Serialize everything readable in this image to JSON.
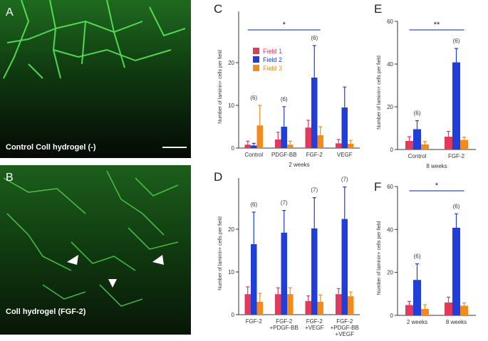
{
  "images": [
    {
      "label": "A",
      "caption": "Control Coll hydrogel (-)"
    },
    {
      "label": "B",
      "caption": "Coll hydrogel (FGF-2)"
    }
  ],
  "chart_data": [
    {
      "type": "bar",
      "label": "C",
      "ylabel": "Number of laminin+ cells per field",
      "xlabel": "2 weeks",
      "categories": [
        [
          "Control"
        ],
        [
          "PDGF-BB"
        ],
        [
          "FGF-2"
        ],
        [
          "VEGF"
        ]
      ],
      "series": [
        {
          "name": "Field 1",
          "color": "#e03a5c",
          "values": [
            0.8,
            2.0,
            4.8,
            1.1
          ],
          "errors": [
            0.8,
            1.7,
            1.7,
            0.9
          ]
        },
        {
          "name": "Field 2",
          "color": "#1f3fd8",
          "values": [
            0.6,
            5.0,
            16.5,
            9.5
          ],
          "errors": [
            0.5,
            4.7,
            7.5,
            4.8
          ]
        },
        {
          "name": "Field 3",
          "color": "#f28a1e",
          "values": [
            5.3,
            0.8,
            3.0,
            1.0
          ],
          "errors": [
            4.7,
            0.8,
            2.0,
            0.8
          ]
        }
      ],
      "annotations": [
        "(6)",
        "(6)",
        "(6)",
        null
      ],
      "significance": "*",
      "ylim": [
        0,
        32
      ],
      "yticks": [
        0,
        10,
        20
      ],
      "legend": true
    },
    {
      "type": "bar",
      "label": "D",
      "ylabel": "Number of laminin+ cells per field",
      "categories": [
        [
          "FGF-2"
        ],
        [
          "FGF-2",
          "+PDGF-BB"
        ],
        [
          "FGF-2",
          "+VEGF"
        ],
        [
          "FGF-2",
          "+PDGF-BB",
          "+VEGF"
        ]
      ],
      "series": [
        {
          "color": "#e03a5c",
          "values": [
            4.8,
            4.8,
            3.2,
            4.8
          ],
          "errors": [
            1.7,
            1.5,
            1.2,
            1.3
          ]
        },
        {
          "color": "#1f3fd8",
          "values": [
            16.5,
            19.2,
            20.2,
            22.4
          ],
          "errors": [
            7.5,
            5.2,
            7.2,
            7.5
          ]
        },
        {
          "color": "#f28a1e",
          "values": [
            3.0,
            4.8,
            3.0,
            4.3
          ],
          "errors": [
            2.0,
            1.5,
            1.6,
            1.0
          ]
        }
      ],
      "annotations": [
        "(6)",
        "(7)",
        "(7)",
        "(7)"
      ],
      "ylim": [
        0,
        32
      ],
      "yticks": [
        0,
        10,
        20
      ],
      "legend": false
    },
    {
      "type": "bar",
      "label": "E",
      "ylabel": "Number of laminin+ cells per field",
      "xlabel": "8 weeks",
      "categories": [
        [
          "Control"
        ],
        [
          "FGF-2"
        ]
      ],
      "series": [
        {
          "color": "#e03a5c",
          "values": [
            4.0,
            6.0
          ],
          "errors": [
            2.0,
            2.5
          ]
        },
        {
          "color": "#1f3fd8",
          "values": [
            9.5,
            40.8
          ],
          "errors": [
            4.0,
            6.5
          ]
        },
        {
          "color": "#f28a1e",
          "values": [
            2.4,
            4.5
          ],
          "errors": [
            1.3,
            1.3
          ]
        }
      ],
      "annotations": [
        "(6)",
        "(6)"
      ],
      "significance": "**",
      "ylim": [
        0,
        60
      ],
      "yticks": [
        0,
        20,
        40,
        60
      ],
      "legend": false
    },
    {
      "type": "bar",
      "label": "F",
      "ylabel": "Number of laminin+ cells per field",
      "categories": [
        [
          "2 weeks"
        ],
        [
          "8 weeks"
        ]
      ],
      "series": [
        {
          "color": "#e03a5c",
          "values": [
            4.8,
            6.0
          ],
          "errors": [
            1.7,
            2.5
          ]
        },
        {
          "color": "#1f3fd8",
          "values": [
            16.5,
            40.8
          ],
          "errors": [
            7.5,
            6.5
          ]
        },
        {
          "color": "#f28a1e",
          "values": [
            3.0,
            4.5
          ],
          "errors": [
            2.0,
            1.3
          ]
        }
      ],
      "annotations": [
        "(6)",
        "(6)"
      ],
      "significance": "*",
      "ylim": [
        0,
        60
      ],
      "yticks": [
        0,
        20,
        40,
        60
      ],
      "legend": false
    }
  ]
}
